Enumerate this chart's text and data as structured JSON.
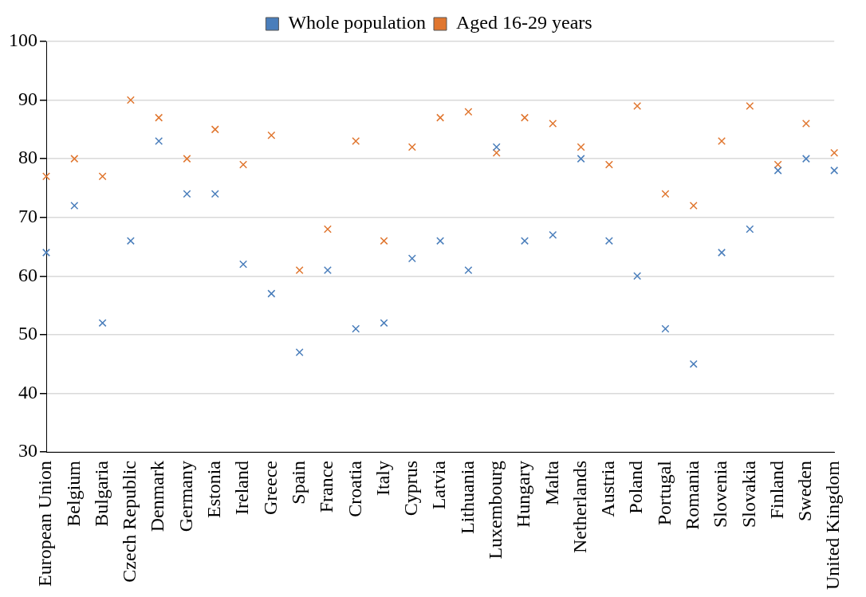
{
  "chart_data": {
    "type": "scatter",
    "categories": [
      "European Union",
      "Belgium",
      "Bulgaria",
      "Czech Republic",
      "Denmark",
      "Germany",
      "Estonia",
      "Ireland",
      "Greece",
      "Spain",
      "France",
      "Croatia",
      "Italy",
      "Cyprus",
      "Latvia",
      "Lithuania",
      "Luxembourg",
      "Hungary",
      "Malta",
      "Netherlands",
      "Austria",
      "Poland",
      "Portugal",
      "Romania",
      "Slovenia",
      "Slovakia",
      "Finland",
      "Sweden",
      "United Kingdom"
    ],
    "series": [
      {
        "name": "Whole population",
        "color": "#4a7ebb",
        "values": [
          64,
          72,
          52,
          66,
          83,
          74,
          74,
          62,
          57,
          47,
          61,
          51,
          52,
          63,
          66,
          61,
          82,
          66,
          67,
          80,
          66,
          60,
          51,
          45,
          64,
          68,
          78,
          80,
          78
        ]
      },
      {
        "name": "Aged 16-29 years",
        "color": "#e0762f",
        "values": [
          77,
          80,
          77,
          90,
          87,
          80,
          85,
          79,
          84,
          61,
          68,
          83,
          66,
          82,
          87,
          88,
          81,
          87,
          86,
          82,
          79,
          89,
          74,
          72,
          83,
          89,
          79,
          86,
          81
        ]
      }
    ],
    "ylim": [
      30,
      100
    ],
    "yticks": [
      30,
      40,
      50,
      60,
      70,
      80,
      90,
      100
    ],
    "grid": "y",
    "legend": "top",
    "marker": "cross"
  }
}
